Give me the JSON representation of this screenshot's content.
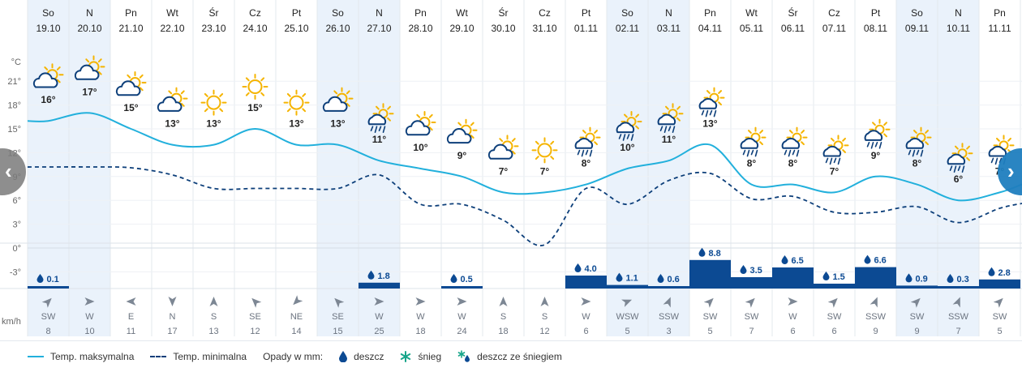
{
  "units": {
    "temp": "°C",
    "wind": "km/h"
  },
  "y_ticks": [
    "21°",
    "18°",
    "15°",
    "12°",
    "9°",
    "6°",
    "3°",
    "0°",
    "-3°"
  ],
  "colors": {
    "max": "#22b0dc",
    "min": "#0d3f7a",
    "precip": "#0c4a93",
    "weekend": "#eaf2fb",
    "icon_sun": "#f5b400",
    "icon_cloud": "#0d3f7a"
  },
  "days": [
    {
      "day": "So",
      "date": "19.10",
      "icon": "partly-cloudy-icon",
      "max": "16°",
      "min": 10.2,
      "rain": "0.1",
      "wind_dir": "SW",
      "wind": "8"
    },
    {
      "day": "N",
      "date": "20.10",
      "icon": "partly-cloudy-icon",
      "max": "17°",
      "min": 10.2,
      "rain": "",
      "wind_dir": "W",
      "wind": "10"
    },
    {
      "day": "Pn",
      "date": "21.10",
      "icon": "partly-cloudy-icon",
      "max": "15°",
      "min": 10.1,
      "rain": "",
      "wind_dir": "E",
      "wind": "11"
    },
    {
      "day": "Wt",
      "date": "22.10",
      "icon": "partly-cloudy-icon",
      "max": "13°",
      "min": 9.2,
      "rain": "",
      "wind_dir": "N",
      "wind": "17"
    },
    {
      "day": "Śr",
      "date": "23.10",
      "icon": "sun-icon",
      "max": "13°",
      "min": 7.5,
      "rain": "",
      "wind_dir": "S",
      "wind": "13"
    },
    {
      "day": "Cz",
      "date": "24.10",
      "icon": "sun-icon",
      "max": "15°",
      "min": 7.5,
      "rain": "",
      "wind_dir": "SE",
      "wind": "12"
    },
    {
      "day": "Pt",
      "date": "25.10",
      "icon": "sun-icon",
      "max": "13°",
      "min": 7.5,
      "rain": "",
      "wind_dir": "NE",
      "wind": "14"
    },
    {
      "day": "So",
      "date": "26.10",
      "icon": "partly-cloudy-icon",
      "max": "13°",
      "min": 7.5,
      "rain": "",
      "wind_dir": "SE",
      "wind": "15"
    },
    {
      "day": "N",
      "date": "27.10",
      "icon": "rain-sun-icon",
      "max": "11°",
      "min": 9.2,
      "rain": "1.8",
      "wind_dir": "W",
      "wind": "25"
    },
    {
      "day": "Pn",
      "date": "28.10",
      "icon": "partly-cloudy-icon",
      "max": "10°",
      "min": 5.5,
      "rain": "",
      "wind_dir": "W",
      "wind": "18"
    },
    {
      "day": "Wt",
      "date": "29.10",
      "icon": "partly-cloudy-icon",
      "max": "9°",
      "min": 5.5,
      "rain": "0.5",
      "wind_dir": "W",
      "wind": "24"
    },
    {
      "day": "Śr",
      "date": "30.10",
      "icon": "partly-cloudy-icon",
      "max": "7°",
      "min": 3.5,
      "rain": "",
      "wind_dir": "S",
      "wind": "18"
    },
    {
      "day": "Cz",
      "date": "31.10",
      "icon": "sun-icon",
      "max": "7°",
      "min": 0.4,
      "rain": "",
      "wind_dir": "S",
      "wind": "12"
    },
    {
      "day": "Pt",
      "date": "01.11",
      "icon": "rain-sun-icon",
      "max": "8°",
      "min": 7.5,
      "rain": "4.0",
      "wind_dir": "W",
      "wind": "6"
    },
    {
      "day": "So",
      "date": "02.11",
      "icon": "rain-sun-icon",
      "max": "10°",
      "min": 5.5,
      "rain": "1.1",
      "wind_dir": "WSW",
      "wind": "5"
    },
    {
      "day": "N",
      "date": "03.11",
      "icon": "rain-sun-icon",
      "max": "11°",
      "min": 8.5,
      "rain": "0.6",
      "wind_dir": "SSW",
      "wind": "3"
    },
    {
      "day": "Pn",
      "date": "04.11",
      "icon": "rain-sun-icon",
      "max": "13°",
      "min": 9.4,
      "rain": "8.8",
      "wind_dir": "SW",
      "wind": "5"
    },
    {
      "day": "Wt",
      "date": "05.11",
      "icon": "rain-sun-icon",
      "max": "8°",
      "min": 6.2,
      "rain": "3.5",
      "wind_dir": "SW",
      "wind": "7"
    },
    {
      "day": "Śr",
      "date": "06.11",
      "icon": "rain-sun-icon",
      "max": "8°",
      "min": 6.5,
      "rain": "6.5",
      "wind_dir": "W",
      "wind": "6"
    },
    {
      "day": "Cz",
      "date": "07.11",
      "icon": "rain-sun-icon",
      "max": "7°",
      "min": 4.5,
      "rain": "1.5",
      "wind_dir": "SW",
      "wind": "6"
    },
    {
      "day": "Pt",
      "date": "08.11",
      "icon": "rain-sun-icon",
      "max": "9°",
      "min": 4.5,
      "rain": "6.6",
      "wind_dir": "SSW",
      "wind": "9"
    },
    {
      "day": "So",
      "date": "09.11",
      "icon": "rain-sun-icon",
      "max": "8°",
      "min": 5.2,
      "rain": "0.9",
      "wind_dir": "SW",
      "wind": "9"
    },
    {
      "day": "N",
      "date": "10.11",
      "icon": "rain-sun-icon",
      "max": "6°",
      "min": 3.2,
      "rain": "0.3",
      "wind_dir": "SSW",
      "wind": "7"
    },
    {
      "day": "Pn",
      "date": "11.11",
      "icon": "rain-sun-icon",
      "max": "7°",
      "min": 5.0,
      "rain": "2.8",
      "wind_dir": "SW",
      "wind": "5"
    }
  ],
  "legend": {
    "max_label": "Temp. maksymalna",
    "min_label": "Temp. minimalna",
    "precip_label": "Opady w mm:",
    "rain_label": "deszcz",
    "snow_label": "śnieg",
    "mix_label": "deszcz ze śniegiem"
  },
  "nav": {
    "prev": "‹",
    "next": "›"
  }
}
